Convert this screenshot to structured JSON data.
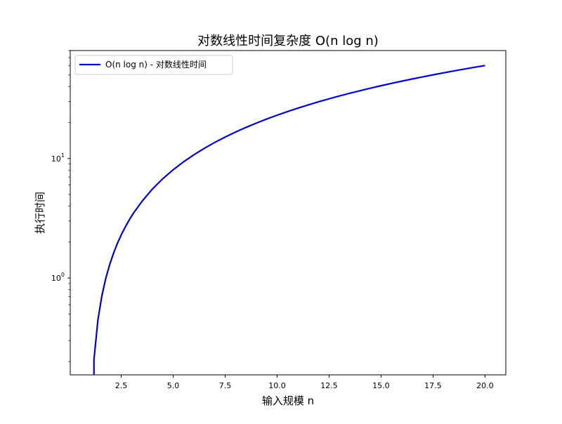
{
  "chart_data": {
    "type": "line",
    "title": "对数线性时间复杂度 O(n log n)",
    "xlabel": "输入规模 n",
    "ylabel": "执行时间",
    "xlim": [
      0.05,
      21.0
    ],
    "ylim": [
      0.155,
      80
    ],
    "yscale": "log",
    "grid": false,
    "legend_position": "top-left",
    "x_ticks": [
      2.5,
      5.0,
      7.5,
      10.0,
      12.5,
      15.0,
      17.5,
      20.0
    ],
    "x_tick_labels": [
      "2.5",
      "5.0",
      "7.5",
      "10.0",
      "12.5",
      "15.0",
      "17.5",
      "20.0"
    ],
    "y_major_ticks": [
      1,
      10
    ],
    "series": [
      {
        "name": "O(n log n) - 对数线性时间",
        "color": "#0000cc",
        "x": [
          1.19,
          1.38,
          1.57,
          1.76,
          1.96,
          2.15,
          2.34,
          2.53,
          2.72,
          2.91,
          3.1,
          3.5,
          4.0,
          4.5,
          5.0,
          5.5,
          6.0,
          6.5,
          7.0,
          7.5,
          8.0,
          8.5,
          9.0,
          9.5,
          10.0,
          10.5,
          11.0,
          11.5,
          12.0,
          12.5,
          13.0,
          13.5,
          14.0,
          14.5,
          15.0,
          15.5,
          16.0,
          16.5,
          17.0,
          17.5,
          18.0,
          18.5,
          19.0,
          19.5,
          20.0
        ],
        "y": [
          0.207,
          0.445,
          0.709,
          0.997,
          1.319,
          1.646,
          1.99,
          2.35,
          2.72,
          3.11,
          3.51,
          4.38,
          5.55,
          6.77,
          8.05,
          9.38,
          10.75,
          12.17,
          13.62,
          15.11,
          16.64,
          18.19,
          19.78,
          21.39,
          23.03,
          24.69,
          26.38,
          28.09,
          29.82,
          31.58,
          33.34,
          35.13,
          36.95,
          38.78,
          40.62,
          42.48,
          44.36,
          46.26,
          48.17,
          50.09,
          52.03,
          53.99,
          55.95,
          57.95,
          59.93
        ]
      }
    ]
  }
}
